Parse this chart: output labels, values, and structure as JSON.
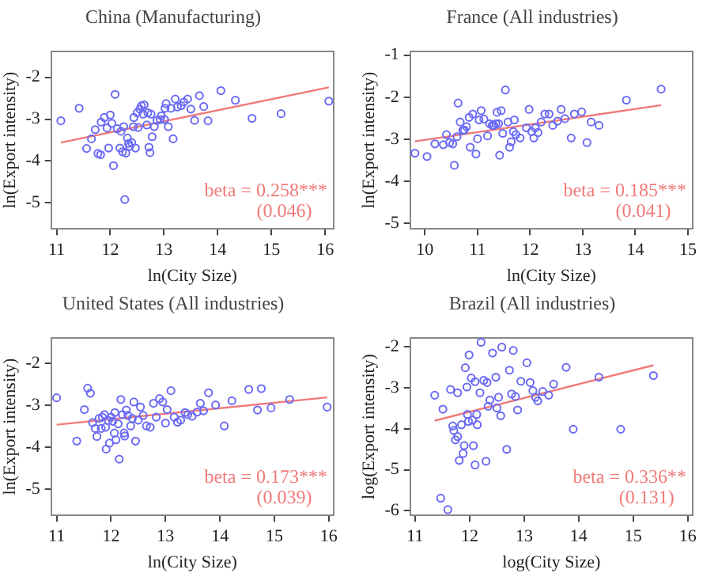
{
  "chart_data": [
    {
      "type": "scatter",
      "title": "China (Manufacturing)",
      "xlabel": "ln(City Size)",
      "ylabel": "ln(Export intensity)",
      "xlim": [
        10.9,
        16.16
      ],
      "ylim": [
        -5.62,
        -1.38
      ],
      "xticks": [
        11,
        12,
        13,
        14,
        15,
        16
      ],
      "yticks": [
        -5,
        -4,
        -3,
        -2
      ],
      "grid": false,
      "legend": false,
      "annotations": [
        "beta = 0.258***",
        "(0.046)"
      ],
      "series": [
        {
          "type": "scatter",
          "marker": "circle",
          "color": "#6a6af5",
          "x": [
            11.08,
            11.42,
            11.56,
            11.65,
            11.72,
            11.77,
            11.82,
            11.83,
            11.89,
            11.94,
            11.97,
            12.0,
            12.03,
            12.06,
            12.09,
            12.13,
            12.18,
            12.2,
            12.23,
            12.25,
            12.27,
            12.29,
            12.32,
            12.34,
            12.36,
            12.4,
            12.43,
            12.44,
            12.47,
            12.5,
            12.52,
            12.55,
            12.58,
            12.61,
            12.63,
            12.68,
            12.7,
            12.72,
            12.74,
            12.76,
            12.78,
            12.82,
            12.87,
            12.93,
            12.95,
            13.01,
            13.02,
            13.04,
            13.08,
            13.13,
            13.17,
            13.21,
            13.25,
            13.32,
            13.37,
            13.44,
            13.5,
            13.57,
            13.66,
            13.74,
            13.82,
            14.06,
            14.33,
            14.64,
            15.18,
            16.07
          ],
          "values": [
            -3.04,
            -2.74,
            -3.7,
            -3.47,
            -3.25,
            -3.82,
            -3.85,
            -3.07,
            -2.96,
            -3.21,
            -3.69,
            -2.9,
            -3.1,
            -4.11,
            -2.41,
            -3.23,
            -3.69,
            -3.29,
            -3.78,
            -3.18,
            -4.92,
            -3.81,
            -3.45,
            -3.58,
            -3.65,
            -3.56,
            -3.18,
            -2.96,
            -3.69,
            -2.85,
            -3.2,
            -2.76,
            -2.68,
            -2.88,
            -2.66,
            -3.14,
            -2.85,
            -3.67,
            -3.8,
            -2.88,
            -3.42,
            -3.18,
            -3.03,
            -3.01,
            -2.92,
            -3.01,
            -2.74,
            -2.63,
            -3.18,
            -2.74,
            -3.47,
            -2.52,
            -2.71,
            -2.68,
            -2.59,
            -2.52,
            -2.76,
            -3.03,
            -2.44,
            -2.7,
            -3.04,
            -2.32,
            -2.55,
            -2.98,
            -2.87,
            -2.57
          ]
        },
        {
          "type": "line",
          "color": "#f07a7a",
          "x": [
            11.08,
            16.07
          ],
          "values": [
            -3.56,
            -2.24
          ]
        }
      ]
    },
    {
      "type": "scatter",
      "title": "France (All industries)",
      "xlabel": "ln(City Size)",
      "ylabel": "ln(Export intensity)",
      "xlim": [
        9.72,
        15.09
      ],
      "ylim": [
        -5.13,
        -0.91
      ],
      "xticks": [
        10,
        11,
        12,
        13,
        14,
        15
      ],
      "yticks": [
        -5,
        -4,
        -3,
        -2,
        -1
      ],
      "grid": false,
      "legend": false,
      "annotations": [
        "beta = 0.185***",
        "(0.041)"
      ],
      "series": [
        {
          "type": "scatter",
          "marker": "circle",
          "color": "#6a6af5",
          "x": [
            9.81,
            10.04,
            10.19,
            10.35,
            10.41,
            10.47,
            10.53,
            10.56,
            10.61,
            10.63,
            10.67,
            10.72,
            10.75,
            10.79,
            10.84,
            10.86,
            10.91,
            10.97,
            11.0,
            11.03,
            11.07,
            11.12,
            11.19,
            11.23,
            11.28,
            11.31,
            11.35,
            11.37,
            11.4,
            11.42,
            11.45,
            11.48,
            11.53,
            11.58,
            11.61,
            11.64,
            11.68,
            11.7,
            11.73,
            11.81,
            11.93,
            11.98,
            12.03,
            12.07,
            12.1,
            12.15,
            12.21,
            12.28,
            12.36,
            12.43,
            12.52,
            12.59,
            12.66,
            12.78,
            12.84,
            12.98,
            13.08,
            13.16,
            13.31,
            13.83,
            14.49
          ],
          "values": [
            -3.33,
            -3.41,
            -3.11,
            -3.13,
            -2.89,
            -3.08,
            -3.11,
            -3.62,
            -2.94,
            -2.14,
            -2.59,
            -2.79,
            -2.78,
            -2.7,
            -2.48,
            -3.19,
            -2.4,
            -3.35,
            -2.99,
            -2.54,
            -2.32,
            -2.52,
            -2.92,
            -2.63,
            -2.67,
            -2.67,
            -2.63,
            -2.36,
            -2.63,
            -3.38,
            -2.32,
            -2.86,
            -1.83,
            -2.59,
            -3.19,
            -3.06,
            -2.82,
            -2.54,
            -2.89,
            -2.97,
            -2.73,
            -2.29,
            -2.82,
            -2.97,
            -2.73,
            -2.84,
            -2.59,
            -2.4,
            -2.4,
            -2.67,
            -2.57,
            -2.29,
            -2.51,
            -2.97,
            -2.4,
            -2.35,
            -3.08,
            -2.59,
            -2.67,
            -2.07,
            -1.81
          ]
        },
        {
          "type": "line",
          "color": "#f07a7a",
          "x": [
            9.81,
            14.49
          ],
          "values": [
            -3.05,
            -2.19
          ]
        }
      ]
    },
    {
      "type": "scatter",
      "title": "United States (All industries)",
      "xlabel": "ln(City Size)",
      "ylabel": "ln(Export intensity)",
      "xlim": [
        10.9,
        16.09
      ],
      "ylim": [
        -5.62,
        -1.39
      ],
      "xticks": [
        11,
        12,
        13,
        14,
        15,
        16
      ],
      "yticks": [
        -5,
        -4,
        -3,
        -2
      ],
      "grid": false,
      "legend": false,
      "annotations": [
        "beta = 0.173***",
        "(0.039)"
      ],
      "series": [
        {
          "type": "scatter",
          "marker": "circle",
          "color": "#6a6af5",
          "x": [
            11.0,
            11.37,
            11.51,
            11.57,
            11.62,
            11.66,
            11.71,
            11.74,
            11.78,
            11.82,
            11.84,
            11.88,
            11.9,
            11.91,
            11.95,
            11.97,
            12.0,
            12.03,
            12.06,
            12.07,
            12.09,
            12.13,
            12.15,
            12.18,
            12.21,
            12.24,
            12.25,
            12.28,
            12.31,
            12.36,
            12.39,
            12.42,
            12.45,
            12.5,
            12.54,
            12.59,
            12.65,
            12.72,
            12.78,
            12.83,
            12.89,
            12.95,
            13.0,
            13.03,
            13.1,
            13.16,
            13.22,
            13.28,
            13.36,
            13.41,
            13.49,
            13.58,
            13.64,
            13.7,
            13.79,
            13.92,
            14.08,
            14.22,
            14.53,
            14.69,
            14.76,
            14.94,
            15.28,
            15.97
          ],
          "values": [
            -2.82,
            -3.85,
            -3.1,
            -2.59,
            -2.71,
            -3.41,
            -3.55,
            -3.74,
            -3.31,
            -3.55,
            -3.28,
            -3.22,
            -3.52,
            -4.04,
            -3.36,
            -3.9,
            -3.28,
            -3.38,
            -3.66,
            -3.17,
            -3.82,
            -3.44,
            -4.28,
            -2.86,
            -3.22,
            -3.66,
            -3.73,
            -3.11,
            -3.24,
            -3.49,
            -3.31,
            -2.92,
            -3.85,
            -3.35,
            -3.04,
            -3.24,
            -3.49,
            -3.52,
            -2.95,
            -3.28,
            -2.84,
            -2.92,
            -3.42,
            -3.1,
            -2.65,
            -3.28,
            -3.4,
            -3.35,
            -3.17,
            -3.22,
            -3.26,
            -3.16,
            -2.95,
            -3.13,
            -2.7,
            -2.99,
            -3.49,
            -2.89,
            -2.62,
            -3.11,
            -2.6,
            -3.06,
            -2.86,
            -3.04
          ]
        },
        {
          "type": "line",
          "color": "#f07a7a",
          "x": [
            11.0,
            15.97
          ],
          "values": [
            -3.46,
            -2.81
          ]
        }
      ]
    },
    {
      "type": "scatter",
      "title": "Brazil (All industries)",
      "xlabel": "log(City Size)",
      "ylabel": "log(Export intensity)",
      "xlim": [
        10.91,
        16.09
      ],
      "ylim": [
        -6.11,
        -1.78
      ],
      "xticks": [
        11,
        12,
        13,
        14,
        15,
        16
      ],
      "yticks": [
        -6,
        -5,
        -4,
        -3,
        -2
      ],
      "grid": false,
      "legend": false,
      "annotations": [
        "beta = 0.336**",
        "(0.131)"
      ],
      "series": [
        {
          "type": "scatter",
          "marker": "circle",
          "color": "#6a6af5",
          "x": [
            11.36,
            11.47,
            11.51,
            11.6,
            11.65,
            11.69,
            11.71,
            11.74,
            11.78,
            11.78,
            11.81,
            11.85,
            11.88,
            11.9,
            11.92,
            11.95,
            11.96,
            11.98,
            11.99,
            12.03,
            12.05,
            12.07,
            12.1,
            12.1,
            12.13,
            12.14,
            12.19,
            12.21,
            12.26,
            12.3,
            12.32,
            12.34,
            12.37,
            12.42,
            12.48,
            12.5,
            12.53,
            12.57,
            12.59,
            12.68,
            12.73,
            12.77,
            12.8,
            12.84,
            12.88,
            12.94,
            13.05,
            13.11,
            13.16,
            13.21,
            13.25,
            13.34,
            13.45,
            13.54,
            13.77,
            13.9,
            14.37,
            14.77,
            15.37
          ],
          "values": [
            -3.18,
            -5.69,
            -3.52,
            -5.97,
            -3.04,
            -3.93,
            -4.04,
            -4.27,
            -4.19,
            -3.12,
            -4.77,
            -3.9,
            -4.6,
            -4.41,
            -2.51,
            -2.98,
            -3.65,
            -3.82,
            -2.2,
            -2.76,
            -3.79,
            -4.41,
            -2.85,
            -4.88,
            -3.65,
            -3.9,
            -3.12,
            -1.89,
            -2.82,
            -4.79,
            -2.87,
            -3.45,
            -3.3,
            -2.15,
            -2.74,
            -3.49,
            -3.23,
            -3.68,
            -2.01,
            -4.5,
            -2.57,
            -3.15,
            -2.09,
            -3.21,
            -3.54,
            -2.84,
            -2.39,
            -2.87,
            -3.07,
            -3.23,
            -3.32,
            -3.09,
            -3.18,
            -2.91,
            -2.5,
            -4.01,
            -2.74,
            -4.01,
            -2.7
          ]
        },
        {
          "type": "line",
          "color": "#f07a7a",
          "x": [
            11.36,
            15.37
          ],
          "values": [
            -3.8,
            -2.45
          ]
        }
      ]
    }
  ]
}
